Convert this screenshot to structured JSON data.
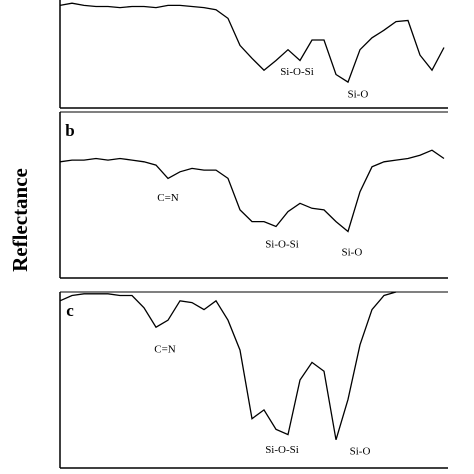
{
  "chart_data": [
    {
      "type": "line",
      "xlim": [
        2000,
        720
      ],
      "ylim": [
        0,
        100
      ],
      "color": "#000000",
      "x": [
        2000,
        1960,
        1920,
        1880,
        1840,
        1800,
        1760,
        1720,
        1680,
        1640,
        1600,
        1560,
        1520,
        1480,
        1440,
        1400,
        1360,
        1320,
        1280,
        1240,
        1200,
        1160,
        1120,
        1080,
        1040,
        1000,
        960,
        920,
        880,
        840,
        800,
        760,
        720
      ],
      "values": [
        95,
        97,
        95,
        94,
        94,
        93,
        94,
        94,
        93,
        95,
        95,
        94,
        93,
        91,
        83,
        58,
        46,
        35,
        44,
        54,
        44,
        63,
        63,
        31,
        24,
        54,
        65,
        72,
        80,
        81,
        49,
        35,
        56
      ],
      "annotations": [
        {
          "text": "Si-O-Si",
          "x": 1210,
          "y": 33
        },
        {
          "text": "Si-O",
          "x": 1007,
          "y": 12
        }
      ]
    },
    {
      "type": "line",
      "label": "b",
      "ylabel": "Reflectance",
      "xlim": [
        2000,
        720
      ],
      "ylim": [
        0,
        100
      ],
      "color": "#000000",
      "x": [
        2000,
        1960,
        1920,
        1880,
        1840,
        1800,
        1760,
        1720,
        1680,
        1640,
        1600,
        1560,
        1520,
        1480,
        1440,
        1400,
        1360,
        1320,
        1280,
        1240,
        1200,
        1160,
        1120,
        1080,
        1040,
        1000,
        960,
        920,
        880,
        840,
        800,
        760,
        720
      ],
      "values": [
        70,
        71,
        71,
        72,
        71,
        72,
        71,
        70,
        68,
        60,
        64,
        66,
        65,
        65,
        60,
        41,
        34,
        34,
        31,
        40,
        45,
        42,
        41,
        34,
        28,
        52,
        67,
        70,
        71,
        72,
        74,
        77,
        72
      ],
      "annotations": [
        {
          "text": "C=N",
          "x": 1640,
          "y": 48
        },
        {
          "text": "Si-O-Si",
          "x": 1260,
          "y": 20
        },
        {
          "text": "Si-O",
          "x": 1027,
          "y": 15
        }
      ]
    },
    {
      "type": "line",
      "label": "c",
      "xlim": [
        2000,
        720
      ],
      "ylim": [
        0,
        100
      ],
      "color": "#000000",
      "x": [
        2000,
        1960,
        1920,
        1880,
        1840,
        1800,
        1760,
        1720,
        1680,
        1640,
        1600,
        1560,
        1520,
        1480,
        1440,
        1400,
        1360,
        1320,
        1280,
        1240,
        1200,
        1160,
        1120,
        1080,
        1040,
        1000,
        960,
        920,
        880,
        840,
        800,
        760,
        720
      ],
      "values": [
        95,
        98,
        99,
        99,
        99,
        98,
        98,
        91,
        80,
        84,
        95,
        94,
        90,
        95,
        84,
        67,
        28,
        33,
        22,
        19,
        50,
        60,
        55,
        16,
        39,
        70,
        90,
        98,
        100,
        null,
        null,
        null,
        null
      ],
      "annotations": [
        {
          "text": "C=N",
          "x": 1650,
          "y": 67
        },
        {
          "text": "Si-O-Si",
          "x": 1260,
          "y": 10
        },
        {
          "text": "Si-O",
          "x": 1000,
          "y": 9
        }
      ]
    }
  ]
}
